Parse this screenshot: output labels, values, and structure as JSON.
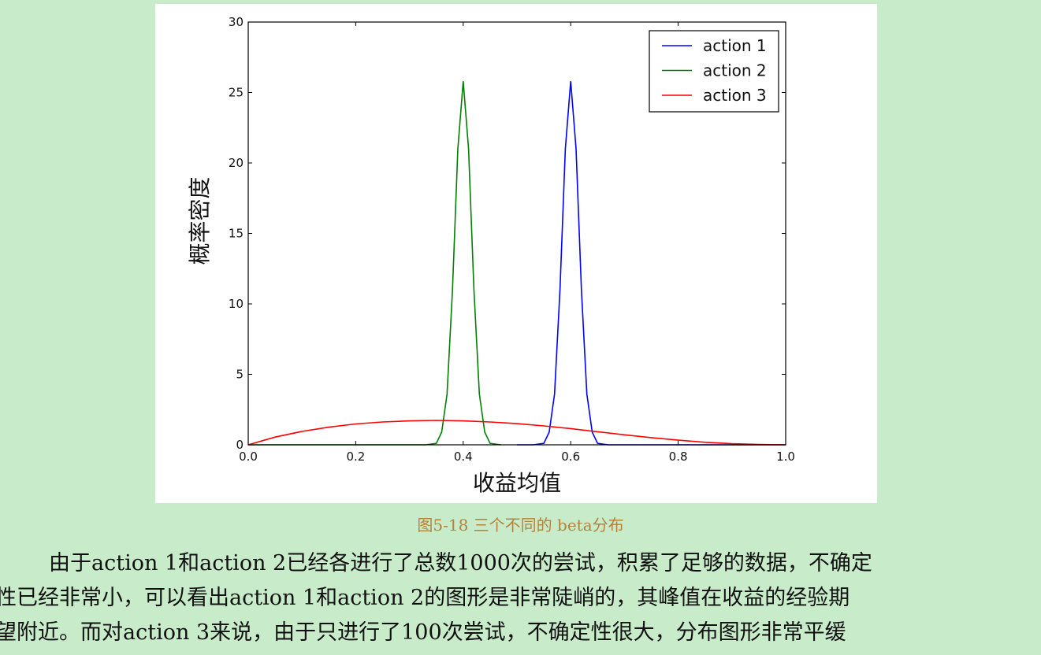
{
  "chart_data": {
    "type": "line",
    "xlabel": "收益均值",
    "ylabel": "概率密度",
    "xlim": [
      0.0,
      1.0
    ],
    "ylim": [
      0,
      30
    ],
    "xticks": [
      0.0,
      0.2,
      0.4,
      0.6,
      0.8,
      1.0
    ],
    "xtick_labels": [
      "0.0",
      "0.2",
      "0.4",
      "0.6",
      "0.8",
      "1.0"
    ],
    "yticks": [
      0,
      5,
      10,
      15,
      20,
      25,
      30
    ],
    "ytick_labels": [
      "0",
      "5",
      "10",
      "15",
      "20",
      "25",
      "30"
    ],
    "grid": false,
    "legend_position": "top-right",
    "series": [
      {
        "name": "action 1",
        "color": "#0000ff",
        "x": [
          0.5,
          0.53,
          0.55,
          0.56,
          0.57,
          0.58,
          0.59,
          0.6,
          0.61,
          0.62,
          0.63,
          0.64,
          0.65,
          0.67,
          1.0
        ],
        "y": [
          0,
          0,
          0.1,
          0.9,
          3.6,
          11.0,
          21.0,
          25.8,
          21.0,
          11.0,
          3.6,
          0.9,
          0.1,
          0,
          0
        ]
      },
      {
        "name": "action 2",
        "color": "#008000",
        "x": [
          0.0,
          0.33,
          0.35,
          0.36,
          0.37,
          0.38,
          0.39,
          0.4,
          0.41,
          0.42,
          0.43,
          0.44,
          0.45,
          0.47
        ],
        "y": [
          0,
          0,
          0.1,
          0.9,
          3.6,
          11.0,
          21.0,
          25.8,
          21.0,
          11.0,
          3.6,
          0.9,
          0.1,
          0
        ]
      },
      {
        "name": "action 3",
        "color": "#ff0000",
        "x": [
          0.0,
          0.05,
          0.1,
          0.15,
          0.2,
          0.25,
          0.3,
          0.35,
          0.4,
          0.45,
          0.5,
          0.55,
          0.6,
          0.65,
          0.7,
          0.75,
          0.8,
          0.85,
          0.9,
          0.95,
          1.0
        ],
        "y": [
          0.0,
          0.55,
          0.95,
          1.25,
          1.48,
          1.62,
          1.7,
          1.73,
          1.7,
          1.62,
          1.5,
          1.34,
          1.15,
          0.93,
          0.71,
          0.51,
          0.33,
          0.18,
          0.08,
          0.02,
          0.0
        ]
      }
    ]
  },
  "caption": "图5-18 三个不同的 beta分布",
  "body_lines": [
    "由于action  1和action  2已经各进行了总数1000次的尝试，积累了足够的数据，不确定",
    "性已经非常小，可以看出action  1和action  2的图形是非常陡峭的，其峰值在收益的经验期",
    "望附近。而对action  3来说，由于只进行了100次尝试，不确定性很大，分布图形非常平缓"
  ]
}
